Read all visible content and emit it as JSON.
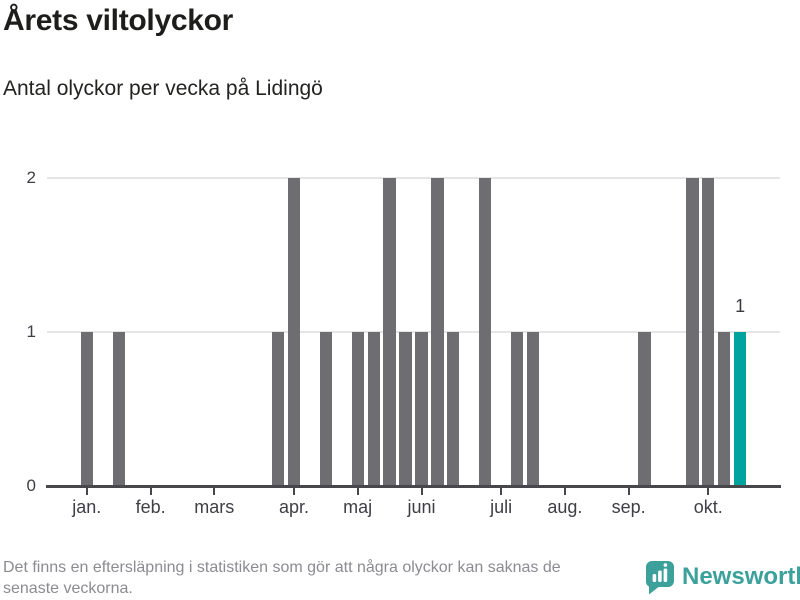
{
  "header": {
    "title": "Årets viltolyckor",
    "subtitle": "Antal olyckor per vecka på Lidingö"
  },
  "chart_data": {
    "type": "bar",
    "title": "Årets viltolyckor",
    "subtitle": "Antal olyckor per vecka på Lidingö",
    "x_unit": "vecka",
    "ylim": [
      0,
      2
    ],
    "y_ticks": [
      "0",
      "1",
      "2"
    ],
    "grid": true,
    "week_slots": 46,
    "values": [
      0,
      0,
      1,
      0,
      1,
      0,
      0,
      0,
      0,
      0,
      0,
      0,
      0,
      0,
      1,
      2,
      0,
      1,
      0,
      1,
      1,
      2,
      1,
      1,
      2,
      1,
      0,
      2,
      0,
      1,
      1,
      0,
      0,
      0,
      0,
      0,
      0,
      1,
      0,
      0,
      2,
      2,
      1,
      1,
      0,
      0
    ],
    "highlight_index": 43,
    "highlight_value_label": "1",
    "month_ticks": [
      {
        "label": "jan.",
        "slot": 2
      },
      {
        "label": "feb.",
        "slot": 6
      },
      {
        "label": "mars",
        "slot": 10
      },
      {
        "label": "apr.",
        "slot": 15
      },
      {
        "label": "maj",
        "slot": 19
      },
      {
        "label": "juni",
        "slot": 23
      },
      {
        "label": "juli",
        "slot": 28
      },
      {
        "label": "aug.",
        "slot": 32
      },
      {
        "label": "sep.",
        "slot": 36
      },
      {
        "label": "okt.",
        "slot": 41
      }
    ],
    "colors": {
      "bar": "#6d6d72",
      "highlight": "#00a39e",
      "grid": "#e5e5e6",
      "axis": "#47474c",
      "labels": "#3e3e45"
    }
  },
  "footer": {
    "note_lines": [
      "Det finns en eftersläpning i statistiken som gör att några olyckor kan saknas de",
      "senaste veckorna."
    ],
    "brand": "Newsworthy",
    "brand_color": "#3ba19a"
  }
}
